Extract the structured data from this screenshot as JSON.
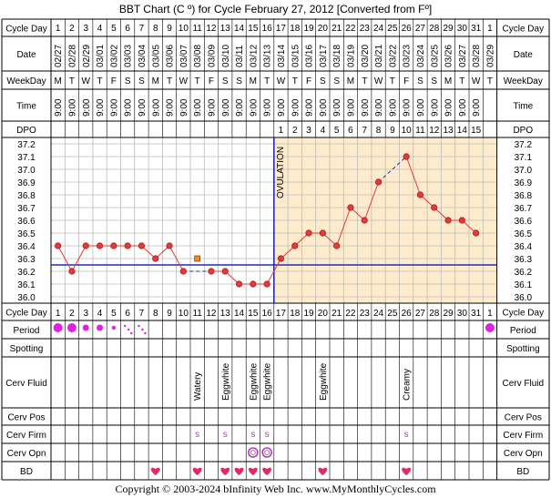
{
  "title": "BBT Chart (C º) for Cycle February 27, 2012  [Converted from Fº]",
  "copyright": "Copyright © 2003-2024 bInfinity Web Inc.    www.MyMonthlyCycles.com",
  "row_labels": {
    "cycle_day": "Cycle Day",
    "date": "Date",
    "weekday": "WeekDay",
    "time": "Time",
    "dpo": "DPO",
    "period": "Period",
    "spotting": "Spotting",
    "cerv_fluid": "Cerv Fluid",
    "cerv_pos": "Cerv Pos",
    "cerv_firm": "Cerv Firm",
    "cerv_opn": "Cerv Opn",
    "bd": "BD"
  },
  "colors": {
    "grid": "#bcbcbc",
    "border": "#000000",
    "header_bg": "#ffffff",
    "luteal_bg": "#fdebcc",
    "temp_line": "#e23b3b",
    "coverline": "#1f2fb8",
    "ovulation_line": "#1f2fb8",
    "period_dot": "#e020e8",
    "heart": "#e02a68",
    "firm_s": "#b040b0",
    "open_circle": "#b040b0"
  },
  "chart_data": {
    "type": "line",
    "title": "BBT Chart (C º) for Cycle February 27, 2012  [Converted from Fº]",
    "cycle_days": [
      1,
      2,
      3,
      4,
      5,
      6,
      7,
      8,
      9,
      10,
      11,
      12,
      13,
      14,
      15,
      16,
      17,
      18,
      19,
      20,
      21,
      22,
      23,
      24,
      25,
      26,
      27,
      28,
      29,
      30,
      31,
      1
    ],
    "dates": [
      "02/27",
      "02/28",
      "02/29",
      "03/01",
      "03/02",
      "03/03",
      "03/04",
      "03/05",
      "03/06",
      "03/07",
      "03/08",
      "03/09",
      "03/10",
      "03/11",
      "03/12",
      "03/13",
      "03/14",
      "03/15",
      "03/16",
      "03/17",
      "03/18",
      "03/19",
      "03/20",
      "03/21",
      "03/22",
      "03/23",
      "03/24",
      "03/25",
      "03/26",
      "03/27",
      "03/28",
      "03/29"
    ],
    "weekdays": [
      "M",
      "T",
      "W",
      "T",
      "F",
      "S",
      "S",
      "M",
      "T",
      "W",
      "T",
      "F",
      "S",
      "S",
      "M",
      "T",
      "W",
      "T",
      "F",
      "S",
      "S",
      "M",
      "T",
      "W",
      "T",
      "F",
      "S",
      "S",
      "M",
      "T",
      "W",
      "T"
    ],
    "times": [
      "9:00",
      "9:00",
      "9:00",
      "9:00",
      "9:00",
      "9:00",
      "9:00",
      "9:00",
      "9:00",
      "9:00",
      "9:00",
      "9:00",
      "9:00",
      "9:00",
      "9:00",
      "9:00",
      "9:00",
      "9:00",
      "9:00",
      "9:00",
      "9:00",
      "9:00",
      "9:00",
      "9:00",
      "9:00",
      "9:00",
      "9:00",
      "9:00",
      "9:00",
      "9:00",
      "9:00",
      ""
    ],
    "dpo": [
      "",
      "",
      "",
      "",
      "",
      "",
      "",
      "",
      "",
      "",
      "",
      "",
      "",
      "",
      "",
      "",
      "1",
      "2",
      "3",
      "4",
      "5",
      "6",
      "7",
      "8",
      "9",
      "10",
      "11",
      "12",
      "13",
      "14",
      "15",
      ""
    ],
    "temps": [
      36.4,
      36.2,
      36.4,
      36.4,
      36.4,
      36.4,
      36.4,
      36.3,
      36.4,
      36.2,
      null,
      36.2,
      36.2,
      36.1,
      36.1,
      36.1,
      36.3,
      36.4,
      36.5,
      36.5,
      36.4,
      36.7,
      36.6,
      36.9,
      null,
      37.1,
      36.8,
      36.7,
      36.6,
      36.6,
      36.5,
      null
    ],
    "dashed_gaps": [
      [
        10,
        12
      ],
      [
        24,
        26
      ]
    ],
    "discarded": [
      {
        "day_index": 11,
        "value": 36.3
      }
    ],
    "y_ticks": [
      37.2,
      37.1,
      37.0,
      36.9,
      36.8,
      36.7,
      36.6,
      36.5,
      36.4,
      36.3,
      36.2,
      36.1,
      36.0
    ],
    "ylim": [
      36.0,
      37.2
    ],
    "coverline": 36.25,
    "ovulation_day_index": 16,
    "ovulation_label": "OVULATION",
    "period": [
      3,
      3,
      2,
      2,
      1,
      0.5,
      0.5,
      0,
      0,
      0,
      0,
      0,
      0,
      0,
      0,
      0,
      0,
      0,
      0,
      0,
      0,
      0,
      0,
      0,
      0,
      0,
      0,
      0,
      0,
      0,
      0,
      3
    ],
    "period_light_pattern": [
      5,
      6
    ],
    "cerv_fluid": {
      "11": "Watery",
      "13": "Eggwhite",
      "15": "Eggwhite",
      "16": "Eggwhite",
      "20": "Eggwhite",
      "26": "Creamy"
    },
    "cerv_firm": {
      "11": "S",
      "13": "S",
      "15": "S",
      "16": "S",
      "26": "S"
    },
    "cerv_opn": [
      15,
      16
    ],
    "bd": [
      8,
      11,
      13,
      14,
      15,
      16,
      20,
      26
    ],
    "grid": true
  }
}
